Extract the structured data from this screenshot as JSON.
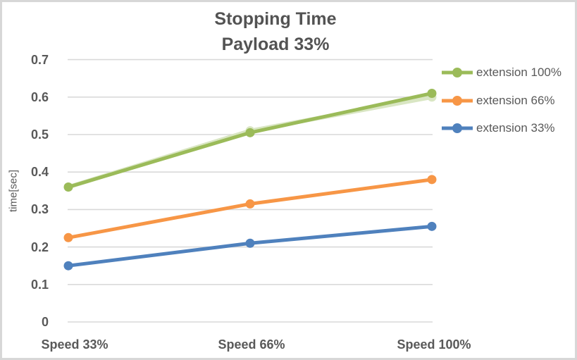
{
  "title": {
    "line1": "Stopping Time",
    "line2": "Payload 33%"
  },
  "y_axis": {
    "title": "time[sec]",
    "tick_labels": [
      "0.7",
      "0.6",
      "0.5",
      "0.4",
      "0.3",
      "0.2",
      "0.1",
      "0"
    ]
  },
  "x_axis": {
    "categories": [
      "Speed 33%",
      "Speed 66%",
      "Speed 100%"
    ]
  },
  "colors": {
    "grid": "#d9d9d9",
    "label_text": "#595959",
    "title_text": "#535353",
    "frame_border": "#d7d7d7",
    "green": "#9bbb59",
    "orange": "#f79646",
    "blue": "#4f81bd",
    "light_green_shadow": "#d9e6c3"
  },
  "chart_data": {
    "type": "line",
    "title": "Stopping Time",
    "subtitle": "Payload 33%",
    "categories": [
      "Speed 33%",
      "Speed 66%",
      "Speed 100%"
    ],
    "series": [
      {
        "name": "extension 100%",
        "color": "#9bbb59",
        "values": [
          0.36,
          0.505,
          0.61
        ]
      },
      {
        "name": "extension 66%",
        "color": "#f79646",
        "values": [
          0.225,
          0.315,
          0.38
        ]
      },
      {
        "name": "extension 33%",
        "color": "#4f81bd",
        "values": [
          0.15,
          0.21,
          0.255
        ]
      }
    ],
    "shadow_series": {
      "name": "extension 100% duplicate (lighter green, behind)",
      "color": "#d9e6c3",
      "values": [
        0.36,
        0.51,
        0.6
      ]
    },
    "xlabel": "",
    "ylabel": "time[sec]",
    "ylim": [
      0,
      0.7
    ],
    "ytick_step": 0.1,
    "grid": true,
    "legend_position": "right",
    "marker": "circle"
  }
}
